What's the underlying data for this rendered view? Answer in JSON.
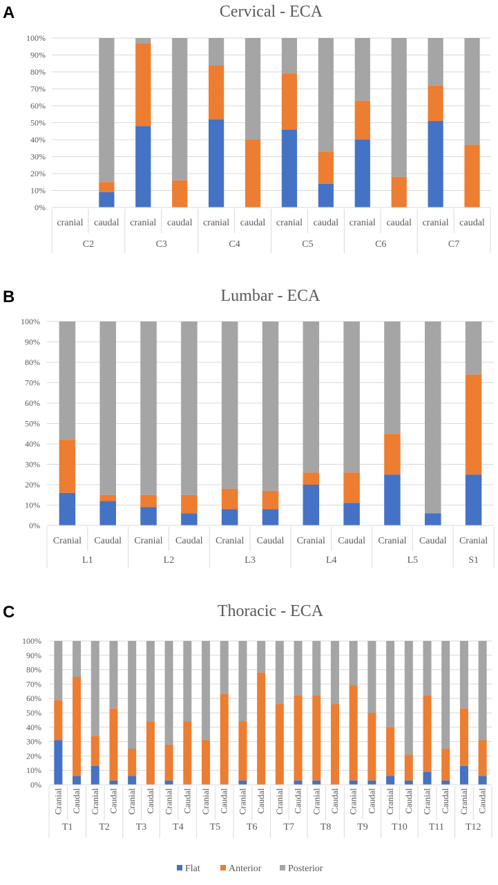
{
  "colors": {
    "Flat": "#4472c4",
    "Anterior": "#ed7d31",
    "Posterior": "#a5a5a5",
    "axis_text": "#595959",
    "grid": "#d9d9d9"
  },
  "legend": {
    "items": [
      "Flat",
      "Anterior",
      "Posterior"
    ],
    "placement": "bottom"
  },
  "chart_data": [
    {
      "panel": "A",
      "type": "bar",
      "stacked": true,
      "title": "Cervical - ECA",
      "ylim": [
        0,
        100
      ],
      "yticks": [
        "0%",
        "10%",
        "20%",
        "30%",
        "40%",
        "50%",
        "60%",
        "70%",
        "80%",
        "90%",
        "100%"
      ],
      "groups": [
        "C2",
        "C3",
        "C4",
        "C5",
        "C6",
        "C7"
      ],
      "categories": [
        "cranial",
        "caudal",
        "cranial",
        "caudal",
        "cranial",
        "caudal",
        "cranial",
        "caudal",
        "cranial",
        "caudal",
        "cranial",
        "caudal"
      ],
      "series": [
        {
          "name": "Flat",
          "values": [
            0,
            9,
            48,
            0,
            52,
            0,
            46,
            14,
            40,
            0,
            51,
            0
          ]
        },
        {
          "name": "Anterior",
          "values": [
            0,
            6,
            49,
            16,
            32,
            40,
            33,
            19,
            23,
            18,
            21,
            37
          ]
        },
        {
          "name": "Posterior",
          "values": [
            0,
            85,
            3,
            84,
            16,
            60,
            21,
            67,
            37,
            82,
            28,
            63
          ]
        }
      ]
    },
    {
      "panel": "B",
      "type": "bar",
      "stacked": true,
      "title": "Lumbar - ECA",
      "ylim": [
        0,
        100
      ],
      "yticks": [
        "0%",
        "10%",
        "20%",
        "30%",
        "40%",
        "50%",
        "60%",
        "70%",
        "80%",
        "90%",
        "100%"
      ],
      "groups": [
        "L1",
        "L2",
        "L3",
        "L4",
        "L5",
        "S1"
      ],
      "categories": [
        "Cranial",
        "Caudal",
        "Cranial",
        "Caudal",
        "Cranial",
        "Caudal",
        "Cranial",
        "Caudal",
        "Cranial",
        "Caudal",
        "Cranial"
      ],
      "series": [
        {
          "name": "Flat",
          "values": [
            16,
            12,
            9,
            6,
            8,
            8,
            20,
            11,
            25,
            6,
            25
          ]
        },
        {
          "name": "Anterior",
          "values": [
            26,
            3,
            6,
            9,
            10,
            9,
            6,
            15,
            20,
            0,
            49
          ]
        },
        {
          "name": "Posterior",
          "values": [
            58,
            85,
            85,
            85,
            82,
            83,
            74,
            74,
            55,
            94,
            26
          ]
        }
      ]
    },
    {
      "panel": "C",
      "type": "bar",
      "stacked": true,
      "title": "Thoracic - ECA",
      "ylim": [
        0,
        100
      ],
      "yticks": [
        "0%",
        "10%",
        "20%",
        "30%",
        "40%",
        "50%",
        "60%",
        "70%",
        "80%",
        "90%",
        "100%"
      ],
      "groups": [
        "T1",
        "T2",
        "T3",
        "T4",
        "T5",
        "T6",
        "T7",
        "T8",
        "T9",
        "T10",
        "T11",
        "T12"
      ],
      "categories": [
        "Cranial",
        "Caudal",
        "Cranial",
        "Caudal",
        "Cranial",
        "Caudal",
        "Cranial",
        "Caudal",
        "Cranial",
        "Caudal",
        "Cranial",
        "Caudal",
        "Cranial",
        "Caudal",
        "Cranial",
        "Caudal",
        "Cranial",
        "Caudal",
        "Cranial",
        "Caudal",
        "Cranial",
        "Caudal",
        "Cranial",
        "Caudal"
      ],
      "series": [
        {
          "name": "Flat",
          "values": [
            31,
            6,
            13,
            3,
            6,
            0,
            3,
            0,
            0,
            0,
            3,
            0,
            0,
            3,
            3,
            0,
            3,
            3,
            6,
            3,
            9,
            3,
            13,
            6
          ]
        },
        {
          "name": "Anterior",
          "values": [
            28,
            69,
            21,
            50,
            19,
            44,
            25,
            44,
            31,
            63,
            41,
            78,
            56,
            59,
            59,
            56,
            66,
            47,
            34,
            18,
            53,
            22,
            40,
            25
          ]
        },
        {
          "name": "Posterior",
          "values": [
            41,
            25,
            66,
            47,
            75,
            56,
            72,
            56,
            69,
            37,
            56,
            22,
            44,
            38,
            38,
            44,
            31,
            50,
            60,
            79,
            38,
            75,
            47,
            69
          ]
        }
      ]
    }
  ]
}
